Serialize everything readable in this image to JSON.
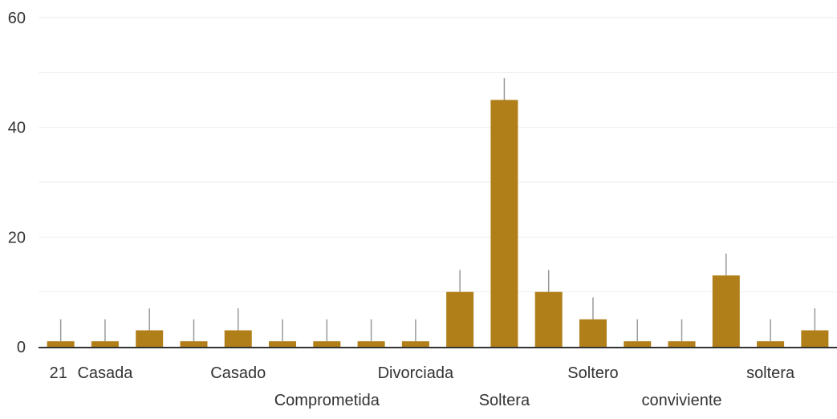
{
  "chart_data": {
    "type": "bar",
    "categories": [
      "21",
      "Casada",
      "",
      "",
      "Casado",
      "",
      "Comprometida",
      "",
      "Divorciada",
      "",
      "Soltera",
      "",
      "Soltero",
      "",
      "conviviente",
      "",
      "soltera",
      ""
    ],
    "values": [
      1,
      1,
      3,
      1,
      3,
      1,
      1,
      1,
      1,
      10,
      45,
      10,
      5,
      1,
      1,
      13,
      1,
      3
    ],
    "error_upper": [
      5,
      5,
      7,
      5,
      7,
      5,
      5,
      5,
      5,
      14,
      49,
      14,
      9,
      5,
      5,
      17,
      5,
      7
    ],
    "y_ticks": [
      "0",
      "20",
      "40",
      "60"
    ],
    "ylim": [
      0,
      60
    ],
    "grid": true,
    "colors": {
      "bar": "#b07f1a",
      "error_bar": "#999999",
      "grid": "#eeeeee",
      "axis": "#333333"
    }
  }
}
